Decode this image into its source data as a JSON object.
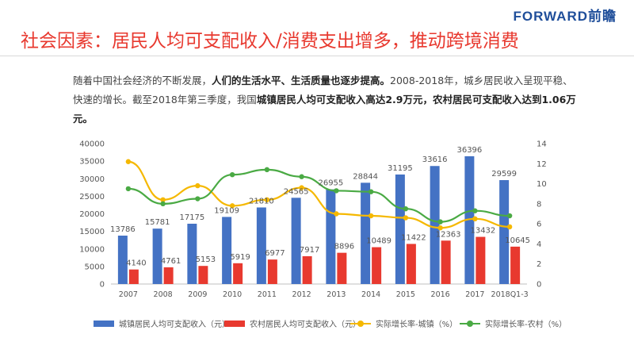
{
  "header": {
    "logo": "FORWARD前瞻",
    "title": "社会因素：居民人均可支配收入/消费支出增多，推动跨境消费"
  },
  "body": {
    "p1": "随着中国社会经济的不断发展，",
    "p1_bold": "人们的生活水平、生活质量也逐步提高。",
    "p2": "2008-2018年，城乡居民收入呈现平稳、快速的增长。截至2018年第三季度，我国",
    "p2_bold1": "城镇居民人均可支配收入高达2.9万元，",
    "p2_bold2": "农村居民可支配收入达到1.06万元。"
  },
  "colors": {
    "urban_bar": "#4472c4",
    "rural_bar": "#e8392f",
    "urban_rate": "#f5b800",
    "rural_rate": "#4aaa44"
  },
  "chart_data": {
    "type": "bar",
    "categories": [
      "2007",
      "2008",
      "2009",
      "2010",
      "2011",
      "2012",
      "2013",
      "2014",
      "2015",
      "2016",
      "2017",
      "2018Q1-3"
    ],
    "series": [
      {
        "name": "城镇居民人均可支配收入（元）",
        "type": "bar",
        "axis": "left",
        "values": [
          13786,
          15781,
          17175,
          19109,
          21810,
          24565,
          26955,
          28844,
          31195,
          33616,
          36396,
          29599
        ]
      },
      {
        "name": "农村居民人均可支配收入（元）",
        "type": "bar",
        "axis": "left",
        "values": [
          4140,
          4761,
          5153,
          5919,
          6977,
          7917,
          8896,
          10489,
          11422,
          12363,
          13432,
          10645
        ]
      },
      {
        "name": "实际增长率-城镇（%）",
        "type": "line",
        "axis": "right",
        "values": [
          12.2,
          8.4,
          9.8,
          7.8,
          8.4,
          9.6,
          7.0,
          6.8,
          6.6,
          5.6,
          6.5,
          5.7
        ]
      },
      {
        "name": "实际增长率-农村（%）",
        "type": "line",
        "axis": "right",
        "values": [
          9.5,
          8.0,
          8.5,
          10.9,
          11.4,
          10.7,
          9.3,
          9.2,
          7.5,
          6.2,
          7.3,
          6.8
        ]
      }
    ],
    "ylim_left": [
      0,
      40000
    ],
    "yticks_left": [
      0,
      5000,
      10000,
      15000,
      20000,
      25000,
      30000,
      35000,
      40000
    ],
    "ylim_right": [
      0,
      14
    ],
    "yticks_right": [
      0,
      2,
      4,
      6,
      8,
      10,
      12,
      14
    ],
    "grid": false,
    "legend": "bottom"
  }
}
